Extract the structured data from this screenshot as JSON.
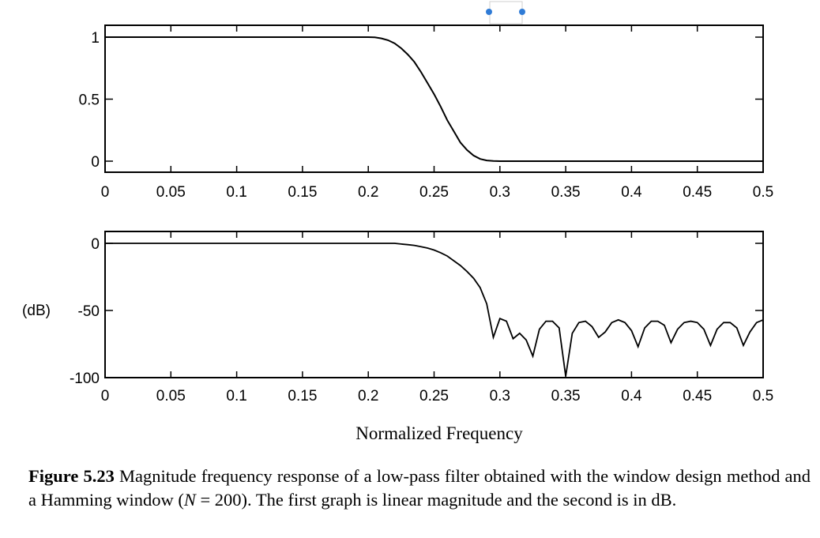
{
  "chart_data": [
    {
      "type": "line",
      "xlim": [
        0,
        0.5
      ],
      "ylim": [
        0,
        1
      ],
      "x_ticks": [
        "0",
        "0.05",
        "0.1",
        "0.15",
        "0.2",
        "0.25",
        "0.3",
        "0.35",
        "0.4",
        "0.45",
        "0.5"
      ],
      "y_ticks": [
        "0",
        "0.5",
        "1"
      ],
      "ylabel": "",
      "xlabel": "",
      "series": [
        {
          "x": [
            0,
            0.2,
            0.205,
            0.21,
            0.215,
            0.22,
            0.225,
            0.23,
            0.235,
            0.24,
            0.245,
            0.25,
            0.255,
            0.26,
            0.265,
            0.27,
            0.275,
            0.28,
            0.285,
            0.29,
            0.295,
            0.3,
            0.5
          ],
          "y": [
            1,
            1,
            0.998,
            0.99,
            0.975,
            0.95,
            0.91,
            0.86,
            0.8,
            0.72,
            0.63,
            0.54,
            0.44,
            0.33,
            0.24,
            0.15,
            0.09,
            0.045,
            0.018,
            0.006,
            0.002,
            0,
            0
          ]
        }
      ]
    },
    {
      "type": "line",
      "xlim": [
        0,
        0.5
      ],
      "ylim": [
        -100,
        0
      ],
      "x_ticks": [
        "0",
        "0.05",
        "0.1",
        "0.15",
        "0.2",
        "0.25",
        "0.3",
        "0.35",
        "0.4",
        "0.45",
        "0.5"
      ],
      "y_ticks": [
        "0",
        "-50",
        "-100"
      ],
      "ylabel": "(dB)",
      "xlabel": "Normalized Frequency",
      "series": [
        {
          "x": [
            0,
            0.22,
            0.225,
            0.23,
            0.235,
            0.24,
            0.245,
            0.25,
            0.255,
            0.26,
            0.265,
            0.27,
            0.275,
            0.28,
            0.285,
            0.29,
            0.295,
            0.3,
            0.305,
            0.31,
            0.315,
            0.32,
            0.325,
            0.33,
            0.335,
            0.34,
            0.345,
            0.35,
            0.355,
            0.36,
            0.365,
            0.37,
            0.375,
            0.38,
            0.385,
            0.39,
            0.395,
            0.4,
            0.405,
            0.41,
            0.415,
            0.42,
            0.425,
            0.43,
            0.435,
            0.44,
            0.445,
            0.45,
            0.455,
            0.46,
            0.465,
            0.47,
            0.475,
            0.48,
            0.485,
            0.49,
            0.495,
            0.5
          ],
          "y": [
            0,
            0,
            -0.5,
            -1,
            -1.5,
            -2.5,
            -3.5,
            -5,
            -7,
            -9.5,
            -13,
            -16.5,
            -21,
            -26,
            -33,
            -45,
            -70,
            -56,
            -58,
            -71,
            -67,
            -72,
            -84,
            -64,
            -58,
            -58,
            -63,
            -99,
            -67,
            -59,
            -58,
            -62,
            -70,
            -66,
            -59,
            -57,
            -59,
            -65,
            -77,
            -63,
            -58,
            -58,
            -61,
            -74,
            -64,
            -59,
            -58,
            -59,
            -64,
            -76,
            -64,
            -59,
            -59,
            -63,
            -76,
            -66,
            -59,
            -57
          ]
        }
      ]
    }
  ],
  "caption": {
    "figure_label": "Figure 5.23",
    "text_part1": " Magnitude frequency response of a low-pass filter obtained with the window design method and a Hamming window (",
    "variable": "N",
    "text_part2": " = 200). The first graph is linear magnitude and the second is in dB."
  }
}
